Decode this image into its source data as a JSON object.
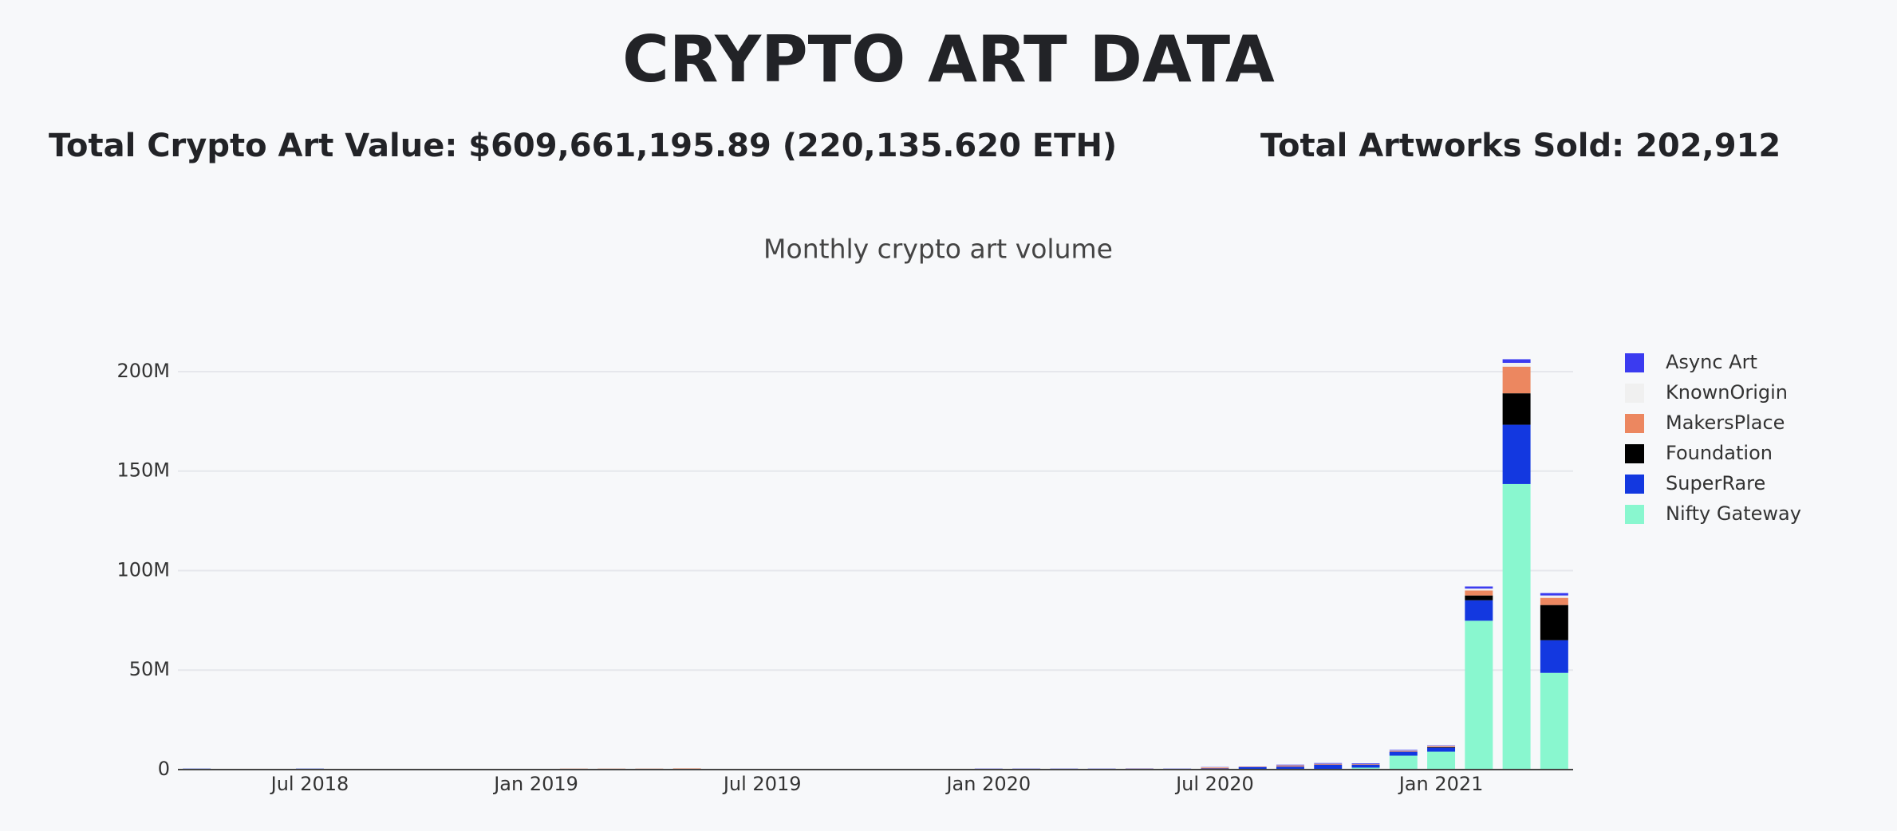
{
  "header": {
    "title": "CRYPTO ART DATA",
    "stats": [
      "Total Crypto Art Value: $609,661,195.89 (220,135.620 ETH)",
      "Total Artworks Sold: 202,912"
    ]
  },
  "chart_data": {
    "type": "bar",
    "stacked": true,
    "title": "Monthly crypto art volume",
    "x": [
      "2018-04",
      "2018-05",
      "2018-06",
      "2018-07",
      "2018-08",
      "2018-09",
      "2018-10",
      "2018-11",
      "2018-12",
      "2019-01",
      "2019-02",
      "2019-03",
      "2019-04",
      "2019-05",
      "2019-06",
      "2019-07",
      "2019-08",
      "2019-09",
      "2019-10",
      "2019-11",
      "2019-12",
      "2020-01",
      "2020-02",
      "2020-03",
      "2020-04",
      "2020-05",
      "2020-06",
      "2020-07",
      "2020-08",
      "2020-09",
      "2020-10",
      "2020-11",
      "2020-12",
      "2021-01",
      "2021-02",
      "2021-03",
      "2021-04"
    ],
    "xticks": [
      {
        "value": "2018-07",
        "label": "Jul 2018"
      },
      {
        "value": "2019-01",
        "label": "Jan 2019"
      },
      {
        "value": "2019-07",
        "label": "Jul 2019"
      },
      {
        "value": "2020-01",
        "label": "Jan 2020"
      },
      {
        "value": "2020-07",
        "label": "Jul 2020"
      },
      {
        "value": "2021-01",
        "label": "Jan 2021"
      }
    ],
    "ylim": [
      0,
      210000000
    ],
    "yticks": [
      0,
      {
        "value": 50000000,
        "label": "50M"
      },
      {
        "value": 100000000,
        "label": "100M"
      },
      {
        "value": 150000000,
        "label": "150M"
      },
      {
        "value": 200000000,
        "label": "200M"
      }
    ],
    "grid": true,
    "legend": "right",
    "series": [
      {
        "name": "Nifty Gateway",
        "color": "#89f7cf",
        "values": [
          0,
          0,
          0,
          0,
          0,
          0,
          0,
          0,
          0,
          0,
          0,
          0,
          0,
          0,
          0,
          0,
          0,
          0,
          0,
          0,
          0,
          0,
          0,
          0,
          0,
          0,
          0,
          0,
          0,
          0,
          300000,
          1000000,
          7000000,
          9000000,
          74800000,
          143500000,
          48600000
        ]
      },
      {
        "name": "SuperRare",
        "color": "#1338e0",
        "values": [
          500000,
          400000,
          200000,
          500000,
          200000,
          100000,
          100000,
          200000,
          100000,
          300000,
          400000,
          400000,
          400000,
          300000,
          200000,
          100000,
          100000,
          100000,
          100000,
          100000,
          100000,
          200000,
          300000,
          300000,
          300000,
          300000,
          200000,
          600000,
          1200000,
          1500000,
          2200000,
          1500000,
          2000000,
          2000000,
          10300000,
          29800000,
          16400000
        ]
      },
      {
        "name": "Foundation",
        "color": "#000000",
        "values": [
          0,
          0,
          0,
          0,
          0,
          0,
          0,
          0,
          0,
          0,
          0,
          0,
          0,
          0,
          0,
          0,
          0,
          0,
          0,
          0,
          0,
          0,
          0,
          0,
          0,
          0,
          0,
          0,
          0,
          0,
          0,
          0,
          0,
          300000,
          2400000,
          15800000,
          17700000
        ]
      },
      {
        "name": "MakersPlace",
        "color": "#ec8760",
        "values": [
          0,
          0,
          0,
          0,
          0,
          0,
          0,
          0,
          100000,
          100000,
          100000,
          100000,
          100000,
          300000,
          100000,
          100000,
          100000,
          100000,
          100000,
          100000,
          100000,
          100000,
          100000,
          100000,
          100000,
          200000,
          200000,
          500000,
          200000,
          600000,
          400000,
          300000,
          400000,
          500000,
          2500000,
          13400000,
          3600000
        ]
      },
      {
        "name": "KnownOrigin",
        "color": "#f0f0f0",
        "values": [
          0,
          0,
          0,
          0,
          0,
          0,
          0,
          0,
          0,
          0,
          0,
          0,
          0,
          0,
          0,
          0,
          0,
          0,
          0,
          0,
          0,
          100000,
          100000,
          100000,
          100000,
          100000,
          100000,
          100000,
          100000,
          100000,
          100000,
          100000,
          300000,
          200000,
          1000000,
          1900000,
          1200000
        ]
      },
      {
        "name": "Async Art",
        "color": "#3b3bf0",
        "values": [
          0,
          0,
          0,
          0,
          0,
          0,
          0,
          0,
          0,
          0,
          0,
          0,
          0,
          0,
          0,
          0,
          0,
          0,
          0,
          0,
          0,
          100000,
          100000,
          100000,
          100000,
          100000,
          100000,
          100000,
          100000,
          300000,
          300000,
          300000,
          300000,
          200000,
          1000000,
          1800000,
          1200000
        ]
      }
    ]
  }
}
